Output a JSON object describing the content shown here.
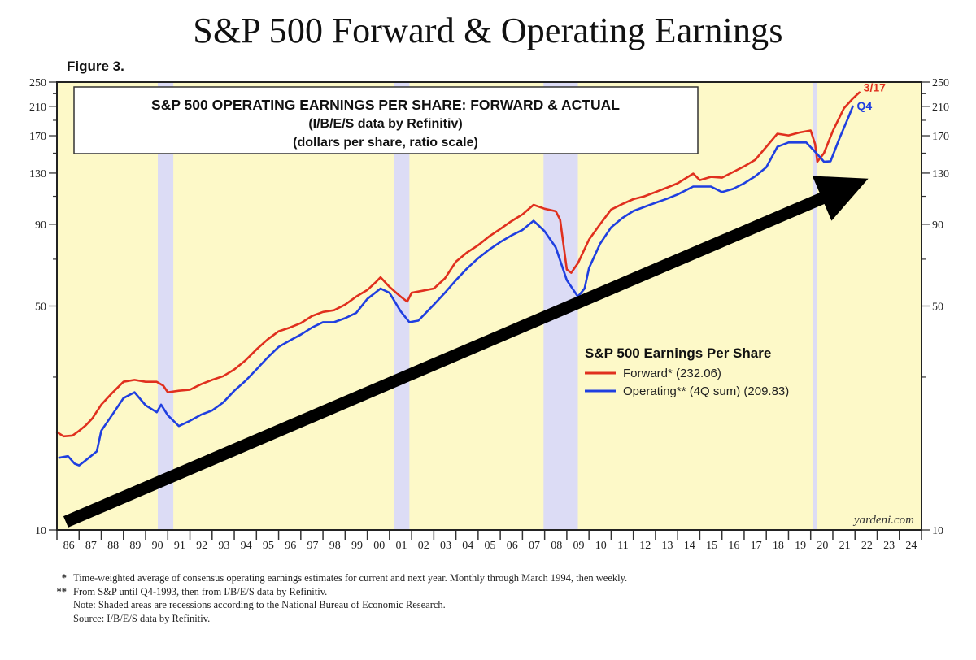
{
  "page": {
    "title": "S&P 500 Forward & Operating Earnings",
    "figure_label": "Figure 3."
  },
  "chart_data": {
    "type": "line",
    "title": "S&P 500 OPERATING EARNINGS PER SHARE: FORWARD & ACTUAL",
    "subtitle_lines": [
      "(I/B/E/S data by Refinitiv)",
      "(dollars per share, ratio scale)"
    ],
    "xlabel": "",
    "ylabel": "",
    "y_scale": "log",
    "ylim": [
      10,
      250
    ],
    "xlim": [
      1986,
      2025
    ],
    "y_ticks": [
      10,
      50,
      90,
      130,
      170,
      210,
      250
    ],
    "y_minor_ticks": [
      30,
      70,
      110,
      150,
      190,
      230
    ],
    "x_tick_labels": [
      "86",
      "87",
      "88",
      "89",
      "90",
      "91",
      "92",
      "93",
      "94",
      "95",
      "96",
      "97",
      "98",
      "99",
      "00",
      "01",
      "02",
      "03",
      "04",
      "05",
      "06",
      "07",
      "08",
      "09",
      "10",
      "11",
      "12",
      "13",
      "14",
      "15",
      "16",
      "17",
      "18",
      "19",
      "20",
      "21",
      "22",
      "23",
      "24"
    ],
    "grid": false,
    "background_color": "#fdf9c8",
    "recession_color": "#dcdcf5",
    "recessions": [
      {
        "start": 1990.55,
        "end": 1991.25
      },
      {
        "start": 2001.2,
        "end": 2001.9
      },
      {
        "start": 2007.95,
        "end": 2009.5
      },
      {
        "start": 2020.1,
        "end": 2020.3
      }
    ],
    "legend": {
      "title": "S&P 500 Earnings Per Share",
      "position": "lower-right",
      "entries": [
        {
          "label": "Forward* (232.06)",
          "color": "#e0301e"
        },
        {
          "label": "Operating** (4Q sum) (209.83)",
          "color": "#1f3fe0"
        }
      ]
    },
    "end_labels": [
      {
        "series": "Forward",
        "text": "3/17",
        "color": "#e0301e"
      },
      {
        "series": "Operating",
        "text": "Q4",
        "color": "#1f3fe0"
      }
    ],
    "watermark": "yardeni.com",
    "trend_arrow": {
      "from": {
        "x": 1986.4,
        "y": 10.6
      },
      "to": {
        "x": 2022.6,
        "y": 125
      }
    },
    "series": [
      {
        "name": "Forward",
        "color": "#e0301e",
        "points": [
          [
            1986.0,
            20.2
          ],
          [
            1986.3,
            19.6
          ],
          [
            1986.7,
            19.7
          ],
          [
            1987.0,
            20.4
          ],
          [
            1987.3,
            21.2
          ],
          [
            1987.6,
            22.3
          ],
          [
            1988.0,
            24.6
          ],
          [
            1988.5,
            26.8
          ],
          [
            1989.0,
            29.0
          ],
          [
            1989.5,
            29.4
          ],
          [
            1990.0,
            29.0
          ],
          [
            1990.5,
            29.0
          ],
          [
            1990.8,
            28.2
          ],
          [
            1991.0,
            26.9
          ],
          [
            1991.5,
            27.2
          ],
          [
            1992.0,
            27.4
          ],
          [
            1992.5,
            28.5
          ],
          [
            1993.0,
            29.4
          ],
          [
            1993.5,
            30.2
          ],
          [
            1994.0,
            31.7
          ],
          [
            1994.5,
            33.8
          ],
          [
            1995.0,
            36.6
          ],
          [
            1995.5,
            39.3
          ],
          [
            1996.0,
            41.7
          ],
          [
            1996.5,
            42.8
          ],
          [
            1997.0,
            44.2
          ],
          [
            1997.5,
            46.5
          ],
          [
            1998.0,
            47.9
          ],
          [
            1998.5,
            48.5
          ],
          [
            1999.0,
            50.5
          ],
          [
            1999.5,
            53.5
          ],
          [
            2000.0,
            56.1
          ],
          [
            2000.4,
            59.5
          ],
          [
            2000.6,
            61.5
          ],
          [
            2001.0,
            57.4
          ],
          [
            2001.5,
            53.5
          ],
          [
            2001.8,
            51.6
          ],
          [
            2002.0,
            55.0
          ],
          [
            2002.5,
            55.8
          ],
          [
            2003.0,
            56.7
          ],
          [
            2003.5,
            61.0
          ],
          [
            2004.0,
            68.8
          ],
          [
            2004.5,
            73.5
          ],
          [
            2005.0,
            77.4
          ],
          [
            2005.5,
            82.5
          ],
          [
            2006.0,
            87.0
          ],
          [
            2006.5,
            92.0
          ],
          [
            2007.0,
            96.6
          ],
          [
            2007.5,
            103.5
          ],
          [
            2008.0,
            100.6
          ],
          [
            2008.5,
            98.8
          ],
          [
            2008.7,
            93.0
          ],
          [
            2009.0,
            65.0
          ],
          [
            2009.2,
            63.5
          ],
          [
            2009.5,
            68.0
          ],
          [
            2010.0,
            80.6
          ],
          [
            2010.5,
            90.0
          ],
          [
            2011.0,
            100.0
          ],
          [
            2011.5,
            104.0
          ],
          [
            2012.0,
            107.8
          ],
          [
            2012.5,
            110.0
          ],
          [
            2013.0,
            113.4
          ],
          [
            2013.5,
            117.0
          ],
          [
            2014.0,
            120.8
          ],
          [
            2014.7,
            129.5
          ],
          [
            2015.0,
            123.6
          ],
          [
            2015.5,
            126.5
          ],
          [
            2016.0,
            125.8
          ],
          [
            2016.5,
            131.0
          ],
          [
            2017.0,
            136.4
          ],
          [
            2017.5,
            143.0
          ],
          [
            2018.0,
            157.0
          ],
          [
            2018.5,
            172.5
          ],
          [
            2019.0,
            170.4
          ],
          [
            2019.5,
            174.0
          ],
          [
            2020.0,
            176.6
          ],
          [
            2020.2,
            160.0
          ],
          [
            2020.3,
            141.0
          ],
          [
            2020.6,
            150.0
          ],
          [
            2021.0,
            176.0
          ],
          [
            2021.5,
            207.0
          ],
          [
            2021.9,
            222.0
          ],
          [
            2022.2,
            232.06
          ]
        ]
      },
      {
        "name": "Operating",
        "color": "#1f3fe0",
        "points": [
          [
            1986.1,
            16.8
          ],
          [
            1986.5,
            17.0
          ],
          [
            1986.8,
            16.1
          ],
          [
            1987.0,
            15.9
          ],
          [
            1987.3,
            16.5
          ],
          [
            1987.8,
            17.6
          ],
          [
            1988.0,
            20.4
          ],
          [
            1988.5,
            22.9
          ],
          [
            1989.0,
            25.8
          ],
          [
            1989.5,
            26.9
          ],
          [
            1990.0,
            24.5
          ],
          [
            1990.5,
            23.3
          ],
          [
            1990.7,
            24.6
          ],
          [
            1991.0,
            22.8
          ],
          [
            1991.5,
            21.1
          ],
          [
            1992.0,
            21.9
          ],
          [
            1992.5,
            22.9
          ],
          [
            1993.0,
            23.6
          ],
          [
            1993.5,
            25.0
          ],
          [
            1994.0,
            27.2
          ],
          [
            1994.5,
            29.2
          ],
          [
            1995.0,
            31.7
          ],
          [
            1995.5,
            34.5
          ],
          [
            1996.0,
            37.3
          ],
          [
            1996.5,
            39.0
          ],
          [
            1997.0,
            40.7
          ],
          [
            1997.5,
            42.8
          ],
          [
            1998.0,
            44.5
          ],
          [
            1998.5,
            44.5
          ],
          [
            1999.0,
            45.8
          ],
          [
            1999.5,
            47.6
          ],
          [
            2000.0,
            52.6
          ],
          [
            2000.6,
            56.7
          ],
          [
            2001.0,
            55.0
          ],
          [
            2001.5,
            48.2
          ],
          [
            2001.9,
            44.5
          ],
          [
            2002.3,
            45.0
          ],
          [
            2003.0,
            50.5
          ],
          [
            2003.5,
            55.0
          ],
          [
            2004.0,
            60.2
          ],
          [
            2004.5,
            65.5
          ],
          [
            2005.0,
            70.5
          ],
          [
            2005.5,
            75.0
          ],
          [
            2006.0,
            79.2
          ],
          [
            2006.5,
            83.0
          ],
          [
            2007.0,
            86.4
          ],
          [
            2007.5,
            92.3
          ],
          [
            2008.0,
            85.6
          ],
          [
            2008.5,
            76.2
          ],
          [
            2009.0,
            60.2
          ],
          [
            2009.5,
            53.5
          ],
          [
            2009.8,
            56.7
          ],
          [
            2010.0,
            65.7
          ],
          [
            2010.5,
            78.2
          ],
          [
            2011.0,
            88.0
          ],
          [
            2011.5,
            94.0
          ],
          [
            2012.0,
            99.0
          ],
          [
            2012.5,
            102.0
          ],
          [
            2013.0,
            105.0
          ],
          [
            2013.5,
            108.0
          ],
          [
            2014.0,
            111.5
          ],
          [
            2014.7,
            118.0
          ],
          [
            2015.5,
            118.0
          ],
          [
            2016.0,
            113.4
          ],
          [
            2016.5,
            116.0
          ],
          [
            2017.0,
            120.8
          ],
          [
            2017.5,
            127.0
          ],
          [
            2018.0,
            135.6
          ],
          [
            2018.5,
            157.0
          ],
          [
            2019.0,
            162.0
          ],
          [
            2019.8,
            162.0
          ],
          [
            2020.3,
            149.0
          ],
          [
            2020.6,
            141.0
          ],
          [
            2020.9,
            141.5
          ],
          [
            2021.3,
            167.0
          ],
          [
            2021.7,
            194.0
          ],
          [
            2021.9,
            209.83
          ]
        ]
      }
    ]
  },
  "footnotes": [
    {
      "mark": "*",
      "text": "Time-weighted average of consensus operating earnings estimates for current and next year. Monthly through March 1994, then weekly."
    },
    {
      "mark": "**",
      "text": "From S&P until Q4-1993, then from I/B/E/S data by Refinitiv."
    },
    {
      "mark": "",
      "text": "Note: Shaded areas are recessions according to the National Bureau of Economic Research."
    },
    {
      "mark": "",
      "text": "Source: I/B/E/S data by Refinitiv."
    }
  ]
}
